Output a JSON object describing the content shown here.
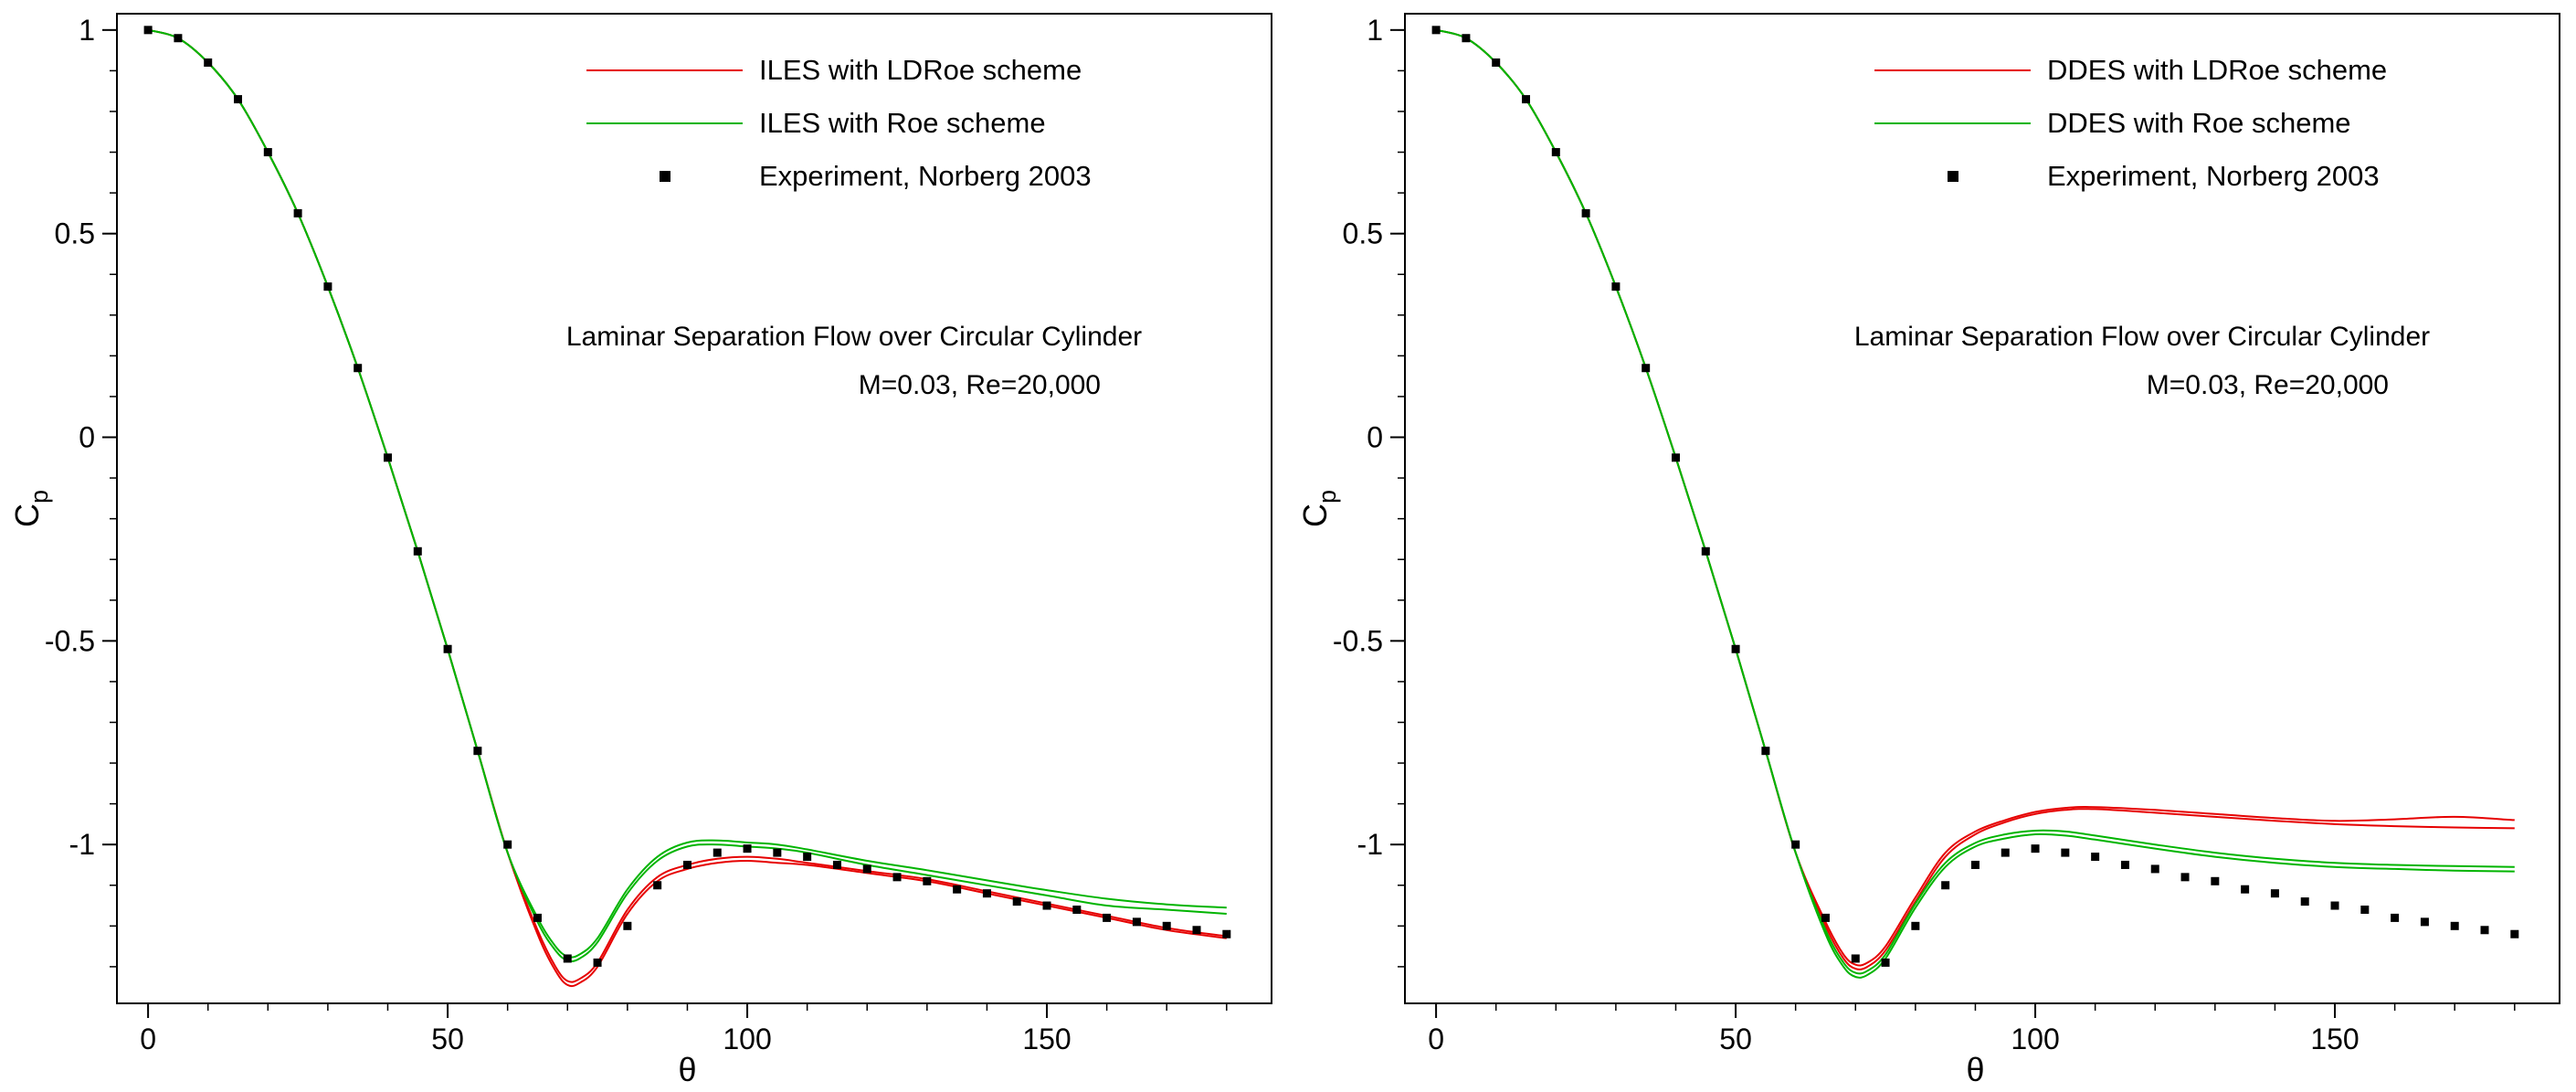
{
  "page": {
    "background": "#ffffff"
  },
  "chart_data": [
    {
      "type": "line",
      "title": "",
      "xlabel": "θ",
      "ylabel": "Cp",
      "annotation": [
        "Laminar Separation Flow over Circular Cylinder",
        "M=0.03, Re=20,000"
      ],
      "xlim": [
        -5.2,
        187.5
      ],
      "ylim": [
        -1.39,
        1.04
      ],
      "xticks": [
        0,
        50,
        100,
        150
      ],
      "yticks": [
        "1",
        "0.5",
        "0",
        "-0.5",
        "-1"
      ],
      "xminor_step": 10,
      "yminor_step": 0.1,
      "grid": false,
      "legend_position": "top-right",
      "series": [
        {
          "name": "ILES with LDRoe scheme",
          "type": "line",
          "color": "#e60000",
          "x": [
            0,
            5,
            10,
            15,
            20,
            25,
            30,
            35,
            40,
            45,
            50,
            55,
            60,
            65,
            68,
            70,
            72,
            75,
            80,
            85,
            90,
            95,
            100,
            105,
            110,
            120,
            130,
            140,
            150,
            160,
            170,
            180
          ],
          "y": [
            1.0,
            0.98,
            0.92,
            0.83,
            0.7,
            0.55,
            0.37,
            0.17,
            -0.05,
            -0.28,
            -0.52,
            -0.77,
            -1.02,
            -1.22,
            -1.31,
            -1.345,
            -1.34,
            -1.3,
            -1.17,
            -1.09,
            -1.06,
            -1.045,
            -1.04,
            -1.045,
            -1.05,
            -1.07,
            -1.09,
            -1.12,
            -1.15,
            -1.18,
            -1.21,
            -1.23
          ],
          "y2": [
            1.0,
            0.98,
            0.92,
            0.83,
            0.7,
            0.55,
            0.37,
            0.17,
            -0.05,
            -0.28,
            -0.52,
            -0.77,
            -1.02,
            -1.21,
            -1.3,
            -1.335,
            -1.33,
            -1.29,
            -1.16,
            -1.08,
            -1.05,
            -1.035,
            -1.03,
            -1.035,
            -1.045,
            -1.065,
            -1.085,
            -1.115,
            -1.145,
            -1.175,
            -1.205,
            -1.225
          ]
        },
        {
          "name": "ILES with Roe scheme",
          "type": "line",
          "color": "#00b400",
          "x": [
            0,
            5,
            10,
            15,
            20,
            25,
            30,
            35,
            40,
            45,
            50,
            55,
            60,
            65,
            68,
            70,
            72,
            75,
            80,
            85,
            90,
            95,
            100,
            105,
            110,
            120,
            130,
            140,
            150,
            160,
            170,
            180
          ],
          "y": [
            1.0,
            0.98,
            0.92,
            0.83,
            0.7,
            0.55,
            0.37,
            0.17,
            -0.05,
            -0.28,
            -0.52,
            -0.77,
            -1.02,
            -1.19,
            -1.26,
            -1.285,
            -1.28,
            -1.24,
            -1.12,
            -1.04,
            -1.005,
            -1.0,
            -1.005,
            -1.01,
            -1.02,
            -1.05,
            -1.075,
            -1.1,
            -1.125,
            -1.15,
            -1.16,
            -1.17
          ],
          "y2": [
            1.0,
            0.98,
            0.92,
            0.83,
            0.7,
            0.55,
            0.37,
            0.17,
            -0.05,
            -0.28,
            -0.52,
            -0.77,
            -1.02,
            -1.18,
            -1.25,
            -1.275,
            -1.27,
            -1.23,
            -1.11,
            -1.03,
            -0.995,
            -0.99,
            -0.995,
            -1.0,
            -1.012,
            -1.04,
            -1.063,
            -1.088,
            -1.112,
            -1.133,
            -1.147,
            -1.155
          ]
        },
        {
          "name": "Experiment, Norberg 2003",
          "type": "scatter",
          "color": "#000000",
          "x": [
            0,
            5,
            10,
            15,
            20,
            25,
            30,
            35,
            40,
            45,
            50,
            55,
            60,
            65,
            70,
            75,
            80,
            85,
            90,
            95,
            100,
            105,
            110,
            115,
            120,
            125,
            130,
            135,
            140,
            145,
            150,
            155,
            160,
            165,
            170,
            175,
            180
          ],
          "y": [
            1.0,
            0.98,
            0.92,
            0.83,
            0.7,
            0.55,
            0.37,
            0.17,
            -0.05,
            -0.28,
            -0.52,
            -0.77,
            -1.0,
            -1.18,
            -1.28,
            -1.29,
            -1.2,
            -1.1,
            -1.05,
            -1.02,
            -1.01,
            -1.02,
            -1.03,
            -1.05,
            -1.06,
            -1.08,
            -1.09,
            -1.11,
            -1.12,
            -1.14,
            -1.15,
            -1.16,
            -1.18,
            -1.19,
            -1.2,
            -1.21,
            -1.22
          ]
        }
      ]
    },
    {
      "type": "line",
      "title": "",
      "xlabel": "θ",
      "ylabel": "Cp",
      "annotation": [
        "Laminar Separation Flow over Circular Cylinder",
        "M=0.03, Re=20,000"
      ],
      "xlim": [
        -5.2,
        187.5
      ],
      "ylim": [
        -1.39,
        1.04
      ],
      "xticks": [
        0,
        50,
        100,
        150
      ],
      "yticks": [
        "1",
        "0.5",
        "0",
        "-0.5",
        "-1"
      ],
      "xminor_step": 10,
      "yminor_step": 0.1,
      "grid": false,
      "legend_position": "top-right",
      "series": [
        {
          "name": "DDES with LDRoe scheme",
          "type": "line",
          "color": "#e60000",
          "x": [
            0,
            5,
            10,
            15,
            20,
            25,
            30,
            35,
            40,
            45,
            50,
            55,
            60,
            65,
            68,
            70,
            72,
            75,
            80,
            85,
            90,
            95,
            100,
            105,
            110,
            120,
            130,
            140,
            150,
            160,
            170,
            180
          ],
          "y": [
            1.0,
            0.98,
            0.92,
            0.83,
            0.7,
            0.55,
            0.37,
            0.17,
            -0.05,
            -0.28,
            -0.52,
            -0.77,
            -1.02,
            -1.2,
            -1.28,
            -1.305,
            -1.3,
            -1.26,
            -1.14,
            -1.03,
            -0.975,
            -0.945,
            -0.925,
            -0.915,
            -0.913,
            -0.922,
            -0.932,
            -0.942,
            -0.95,
            -0.955,
            -0.958,
            -0.96
          ],
          "y2": [
            1.0,
            0.98,
            0.92,
            0.83,
            0.7,
            0.55,
            0.37,
            0.17,
            -0.05,
            -0.28,
            -0.52,
            -0.77,
            -1.02,
            -1.19,
            -1.27,
            -1.295,
            -1.29,
            -1.25,
            -1.13,
            -1.02,
            -0.968,
            -0.94,
            -0.92,
            -0.91,
            -0.908,
            -0.915,
            -0.925,
            -0.935,
            -0.942,
            -0.938,
            -0.932,
            -0.94
          ]
        },
        {
          "name": "DDES with Roe scheme",
          "type": "line",
          "color": "#00b400",
          "x": [
            0,
            5,
            10,
            15,
            20,
            25,
            30,
            35,
            40,
            45,
            50,
            55,
            60,
            65,
            68,
            70,
            72,
            75,
            80,
            85,
            90,
            95,
            100,
            105,
            110,
            120,
            130,
            140,
            150,
            160,
            170,
            180
          ],
          "y": [
            1.0,
            0.98,
            0.92,
            0.83,
            0.7,
            0.55,
            0.37,
            0.17,
            -0.05,
            -0.28,
            -0.52,
            -0.77,
            -1.02,
            -1.22,
            -1.3,
            -1.325,
            -1.32,
            -1.28,
            -1.155,
            -1.055,
            -1.005,
            -0.985,
            -0.975,
            -0.978,
            -0.988,
            -1.01,
            -1.03,
            -1.045,
            -1.055,
            -1.06,
            -1.064,
            -1.066
          ],
          "y2": [
            1.0,
            0.98,
            0.92,
            0.83,
            0.7,
            0.55,
            0.37,
            0.17,
            -0.05,
            -0.28,
            -0.52,
            -0.77,
            -1.02,
            -1.21,
            -1.29,
            -1.315,
            -1.31,
            -1.27,
            -1.145,
            -1.045,
            -0.996,
            -0.975,
            -0.966,
            -0.968,
            -0.978,
            -1.0,
            -1.02,
            -1.035,
            -1.045,
            -1.05,
            -1.053,
            -1.055
          ]
        },
        {
          "name": "Experiment, Norberg 2003",
          "type": "scatter",
          "color": "#000000",
          "x": [
            0,
            5,
            10,
            15,
            20,
            25,
            30,
            35,
            40,
            45,
            50,
            55,
            60,
            65,
            70,
            75,
            80,
            85,
            90,
            95,
            100,
            105,
            110,
            115,
            120,
            125,
            130,
            135,
            140,
            145,
            150,
            155,
            160,
            165,
            170,
            175,
            180
          ],
          "y": [
            1.0,
            0.98,
            0.92,
            0.83,
            0.7,
            0.55,
            0.37,
            0.17,
            -0.05,
            -0.28,
            -0.52,
            -0.77,
            -1.0,
            -1.18,
            -1.28,
            -1.29,
            -1.2,
            -1.1,
            -1.05,
            -1.02,
            -1.01,
            -1.02,
            -1.03,
            -1.05,
            -1.06,
            -1.08,
            -1.09,
            -1.11,
            -1.12,
            -1.14,
            -1.15,
            -1.16,
            -1.18,
            -1.19,
            -1.2,
            -1.21,
            -1.22
          ]
        }
      ]
    }
  ]
}
